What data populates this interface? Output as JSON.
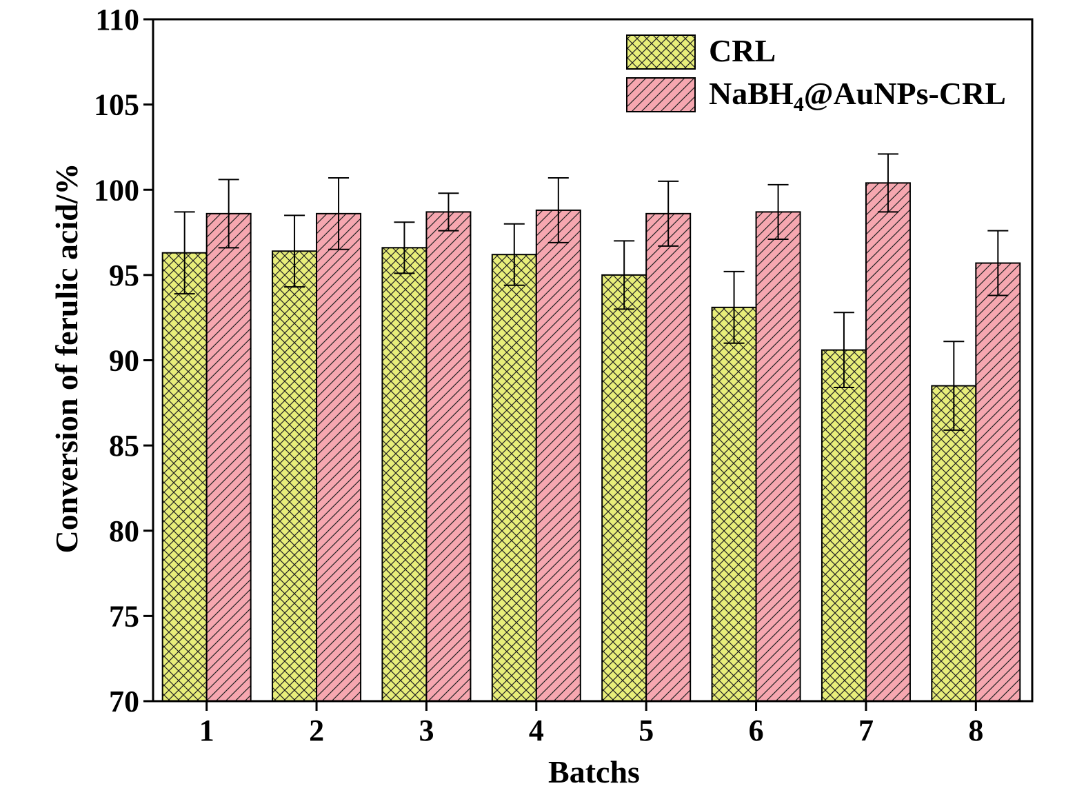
{
  "chart_data": {
    "type": "bar",
    "title": "",
    "xlabel": "Batchs",
    "ylabel": "Conversion of ferulic acid/%",
    "ylim": [
      70,
      110
    ],
    "yticks": [
      70,
      75,
      80,
      85,
      90,
      95,
      100,
      105,
      110
    ],
    "categories": [
      "1",
      "2",
      "3",
      "4",
      "5",
      "6",
      "7",
      "8"
    ],
    "grid": false,
    "legend_position": "top-right",
    "series": [
      {
        "name": "CRL",
        "legend_main": "CRL",
        "legend_sub": "",
        "legend_tail": "",
        "color": "#e8ee7a",
        "pattern": "crosshatch",
        "values": [
          96.3,
          96.4,
          96.6,
          96.2,
          95.0,
          93.1,
          90.6,
          88.5
        ],
        "errors": [
          2.4,
          2.1,
          1.5,
          1.8,
          2.0,
          2.1,
          2.2,
          2.6
        ]
      },
      {
        "name": "NaBH4@AuNPs-CRL",
        "legend_main": "NaBH",
        "legend_sub": "4",
        "legend_tail": "@AuNPs-CRL",
        "color": "#f6a7b0",
        "pattern": "diagonal",
        "values": [
          98.6,
          98.6,
          98.7,
          98.8,
          98.6,
          98.7,
          100.4,
          95.7
        ],
        "errors": [
          2.0,
          2.1,
          1.1,
          1.9,
          1.9,
          1.6,
          1.7,
          1.9
        ]
      }
    ]
  }
}
